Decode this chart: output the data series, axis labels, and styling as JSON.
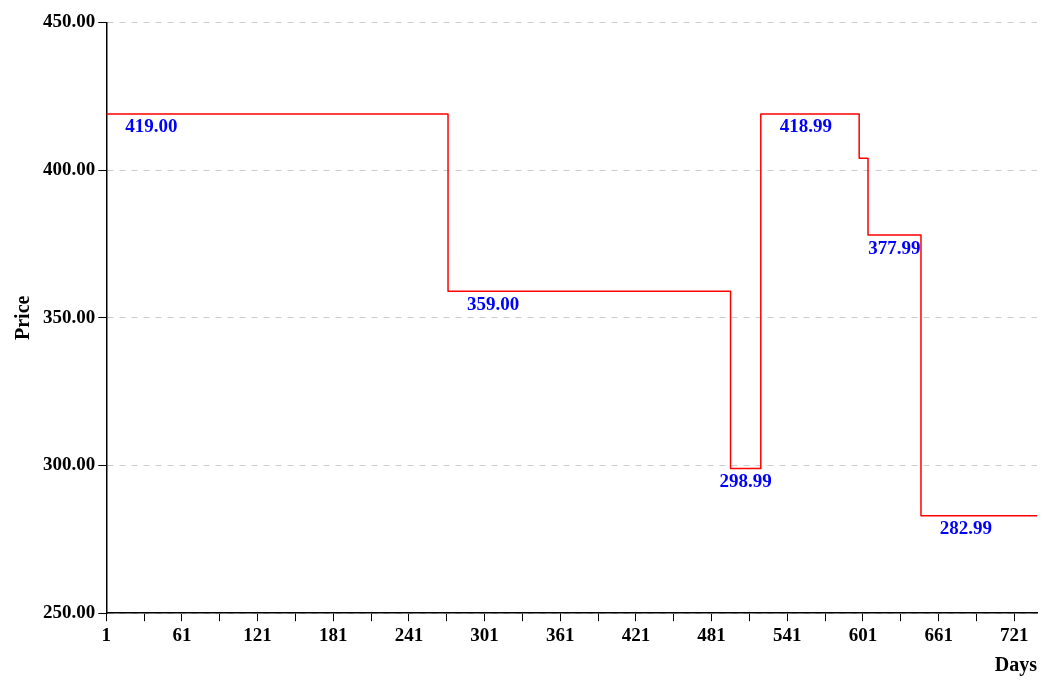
{
  "chart_data": {
    "type": "step",
    "xlabel": "Days",
    "ylabel": "Price",
    "x": [
      1,
      272,
      496,
      520,
      598,
      605,
      647,
      739
    ],
    "series": [
      {
        "color": "#ff0000",
        "values": [
          419.0,
          359.0,
          298.99,
          418.99,
          404,
          377.99,
          282.99,
          282.99
        ],
        "value_labels": [
          "419.00",
          "359.00",
          "298.99",
          "418.99",
          null,
          "377.99",
          "282.99",
          null
        ]
      }
    ],
    "xlim": [
      1,
      739
    ],
    "xticks": [
      1,
      {
        "value": 31,
        "label": null
      },
      61,
      {
        "value": 91,
        "label": null
      },
      121,
      {
        "value": 151,
        "label": null
      },
      181,
      {
        "value": 211,
        "label": null
      },
      241,
      {
        "value": 271,
        "label": null
      },
      301,
      {
        "value": 331,
        "label": null
      },
      361,
      {
        "value": 391,
        "label": null
      },
      421,
      {
        "value": 451,
        "label": null
      },
      481,
      {
        "value": 511,
        "label": null
      },
      541,
      {
        "value": 571,
        "label": null
      },
      601,
      {
        "value": 631,
        "label": null
      },
      661,
      {
        "value": 691,
        "label": null
      },
      721
    ],
    "ylim": [
      250,
      450
    ],
    "yticks": [
      {
        "value": 250,
        "label": "250.00"
      },
      {
        "value": 300,
        "label": "300.00"
      },
      {
        "value": 350,
        "label": "350.00"
      },
      {
        "value": 400,
        "label": "400.00"
      },
      {
        "value": 450,
        "label": "450.00"
      }
    ],
    "grid": "y",
    "line_style": "solid",
    "marker": "none",
    "legend": false
  }
}
